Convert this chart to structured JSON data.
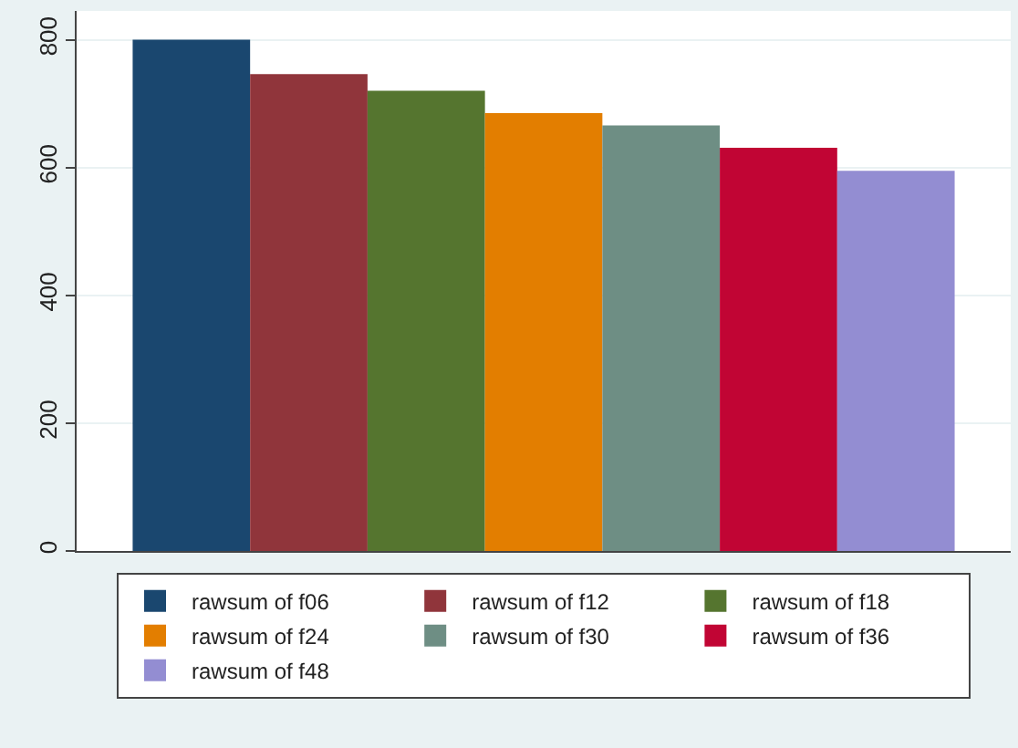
{
  "chart_data": {
    "type": "bar",
    "categories": [
      null
    ],
    "series": [
      {
        "name": "rawsum of f06",
        "color": "#1a476f",
        "values": [
          800
        ]
      },
      {
        "name": "rawsum of f12",
        "color": "#90353b",
        "values": [
          746
        ]
      },
      {
        "name": "rawsum of f18",
        "color": "#55752f",
        "values": [
          720
        ]
      },
      {
        "name": "rawsum of f24",
        "color": "#e37e00",
        "values": [
          685
        ]
      },
      {
        "name": "rawsum of f30",
        "color": "#6e8e84",
        "values": [
          666
        ]
      },
      {
        "name": "rawsum of f36",
        "color": "#c10534",
        "values": [
          631
        ]
      },
      {
        "name": "rawsum of f48",
        "color": "#938dd2",
        "values": [
          595
        ]
      }
    ],
    "ylim": [
      0,
      845
    ],
    "yticks": [
      0,
      200,
      400,
      600,
      800
    ],
    "grid": "y",
    "legend": "bottom",
    "tick_labels": "y"
  }
}
